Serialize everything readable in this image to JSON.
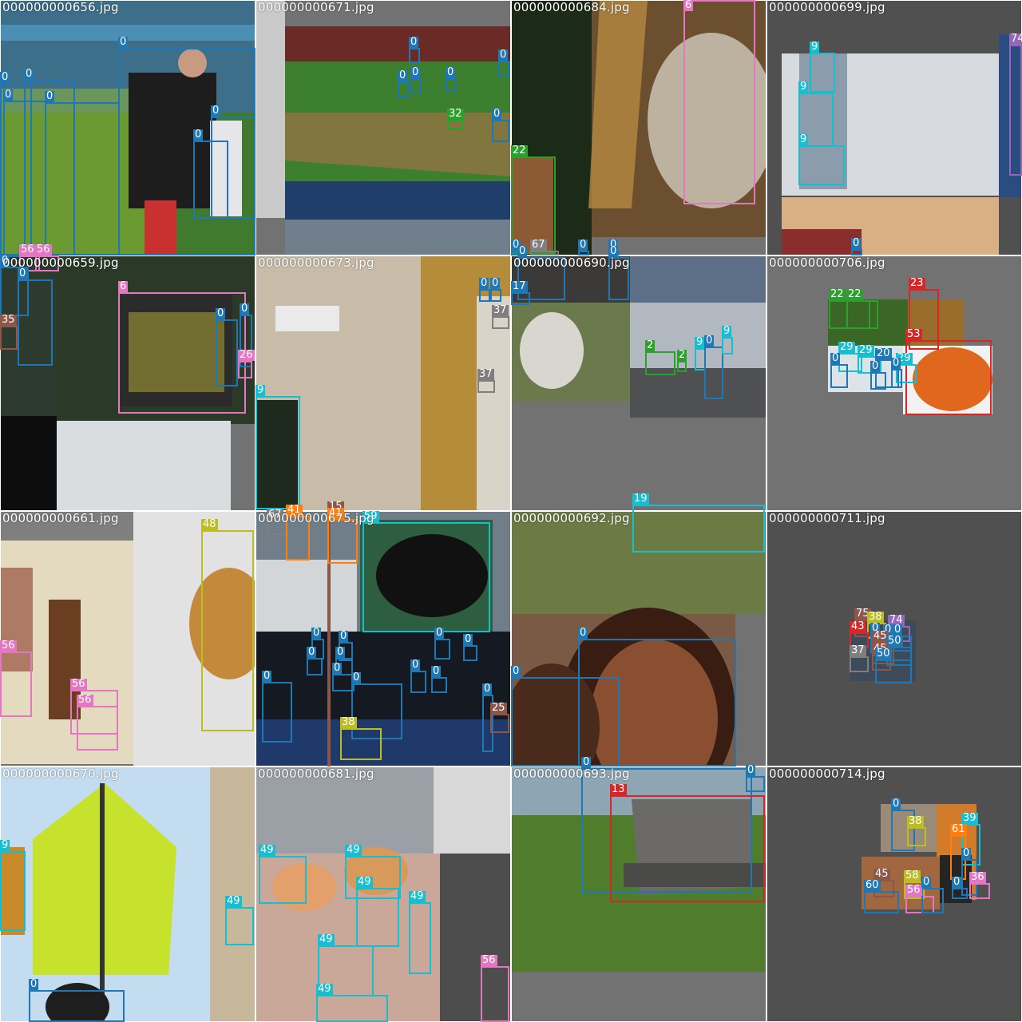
{
  "colors": {
    "0": "#1f77b4",
    "2": "#2ca02c",
    "6": "#e377c2",
    "9": "#17becf",
    "13": "#d62728",
    "15": "#8c564b",
    "19": "#17becf",
    "20": "#1f77b4",
    "22": "#2ca02c",
    "23": "#d62728",
    "25": "#8c564b",
    "26": "#e377c2",
    "29": "#17becf",
    "32": "#2ca02c",
    "35": "#8c564b",
    "36": "#e377c2",
    "37": "#7f7f7f",
    "38": "#bcbd22",
    "39": "#17becf",
    "41": "#ff7f0e",
    "43": "#d62728",
    "45": "#8c564b",
    "48": "#bcbd22",
    "49": "#17becf",
    "50": "#1f77b4",
    "53": "#d62728",
    "56": "#e377c2",
    "58": "#bcbd22",
    "59": "#17becf",
    "60": "#1f77b4",
    "61": "#ff7f0e",
    "67": "#7f7f7f",
    "74": "#9467bd",
    "75": "#8c564b"
  },
  "tiles": [
    {
      "file": "000000000656.jpg",
      "boxes": [
        [
          "0",
          148,
          60,
          172,
          260
        ],
        [
          "0",
          0,
          104,
          40,
          216
        ],
        [
          "0",
          4,
          126,
          54,
          196
        ],
        [
          "0",
          30,
          100,
          64,
          220
        ],
        [
          "0",
          56,
          128,
          94,
          192
        ],
        [
          "0",
          242,
          176,
          44,
          98
        ],
        [
          "0",
          264,
          146,
          56,
          128
        ],
        [
          "56",
          24,
          320,
          26,
          20
        ],
        [
          "56",
          44,
          320,
          30,
          20
        ]
      ]
    },
    {
      "file": "000000000671.jpg",
      "boxes": [
        [
          "0",
          512,
          60,
          14,
          20
        ],
        [
          "0",
          624,
          76,
          14,
          20
        ],
        [
          "0",
          498,
          102,
          14,
          20
        ],
        [
          "0",
          514,
          98,
          14,
          18
        ],
        [
          "0",
          558,
          98,
          14,
          16
        ],
        [
          "32",
          560,
          150,
          20,
          12
        ],
        [
          "0",
          616,
          150,
          22,
          28
        ]
      ]
    },
    {
      "file": "000000000684.jpg",
      "boxes": [
        [
          "6",
          856,
          0,
          90,
          256
        ],
        [
          "22",
          640,
          196,
          56,
          122
        ],
        [
          "0",
          640,
          314,
          10,
          6
        ],
        [
          "67",
          664,
          314,
          36,
          6
        ],
        [
          "0",
          724,
          314,
          14,
          6
        ],
        [
          "0",
          762,
          314,
          14,
          6
        ]
      ]
    },
    {
      "file": "000000000699.jpg",
      "boxes": [
        [
          "9",
          1014,
          66,
          32,
          50
        ],
        [
          "9",
          1000,
          116,
          44,
          68
        ],
        [
          "9",
          1000,
          182,
          58,
          50
        ],
        [
          "74",
          1264,
          56,
          16,
          164
        ],
        [
          "0",
          1066,
          312,
          14,
          8
        ]
      ]
    },
    {
      "file": "000000000659.jpg",
      "boxes": [
        [
          "6",
          148,
          366,
          160,
          152
        ],
        [
          "0",
          270,
          400,
          28,
          84
        ],
        [
          "0",
          300,
          394,
          16,
          66
        ],
        [
          "26",
          298,
          452,
          18,
          22
        ],
        [
          "0",
          0,
          334,
          36,
          62
        ],
        [
          "0",
          22,
          350,
          44,
          108
        ],
        [
          "35",
          0,
          408,
          22,
          30
        ]
      ]
    },
    {
      "file": "000000000673.jpg",
      "boxes": [
        [
          "9",
          320,
          496,
          56,
          142
        ],
        [
          "0",
          600,
          362,
          14,
          16
        ],
        [
          "0",
          614,
          362,
          14,
          16
        ],
        [
          "37",
          616,
          396,
          22,
          16
        ],
        [
          "37",
          598,
          476,
          22,
          16
        ]
      ]
    },
    {
      "file": "000000000690.jpg",
      "boxes": [
        [
          "0",
          648,
          322,
          60,
          54
        ],
        [
          "0",
          762,
          322,
          26,
          54
        ],
        [
          "17",
          640,
          366,
          24,
          16
        ],
        [
          "2",
          808,
          440,
          38,
          30
        ],
        [
          "2",
          848,
          452,
          12,
          14
        ],
        [
          "9",
          870,
          436,
          14,
          28
        ],
        [
          "0",
          882,
          434,
          24,
          66
        ],
        [
          "9",
          904,
          422,
          14,
          22
        ]
      ]
    },
    {
      "file": "000000000706.jpg",
      "boxes": [
        [
          "22",
          1038,
          376,
          52,
          36
        ],
        [
          "22",
          1060,
          376,
          40,
          36
        ],
        [
          "23",
          1138,
          362,
          38,
          76
        ],
        [
          "53",
          1134,
          426,
          108,
          94
        ],
        [
          "29",
          1050,
          442,
          30,
          24
        ],
        [
          "0",
          1040,
          456,
          22,
          30
        ],
        [
          "29",
          1074,
          446,
          30,
          22
        ],
        [
          "20",
          1096,
          450,
          30,
          36
        ],
        [
          "29",
          1122,
          456,
          26,
          24
        ],
        [
          "0",
          1090,
          466,
          20,
          22
        ],
        [
          "0",
          1116,
          462,
          14,
          24
        ]
      ]
    },
    {
      "file": "000000000661.jpg",
      "boxes": [
        [
          "48",
          252,
          664,
          66,
          252
        ],
        [
          "56",
          0,
          816,
          40,
          82
        ],
        [
          "56",
          88,
          864,
          60,
          56
        ],
        [
          "56",
          96,
          884,
          52,
          56
        ]
      ]
    },
    {
      "file": "000000000675.jpg",
      "boxes": [
        [
          "67",
          334,
          652,
          26,
          18
        ],
        [
          "41",
          358,
          646,
          30,
          56
        ],
        [
          "15",
          410,
          642,
          2,
          318
        ],
        [
          "41",
          410,
          650,
          38,
          56
        ],
        [
          "59",
          454,
          654,
          160,
          138
        ],
        [
          "0",
          390,
          800,
          16,
          26
        ],
        [
          "0",
          424,
          804,
          18,
          24
        ],
        [
          "0",
          544,
          800,
          20,
          26
        ],
        [
          "0",
          580,
          808,
          18,
          20
        ],
        [
          "0",
          384,
          824,
          20,
          22
        ],
        [
          "0",
          420,
          824,
          22,
          22
        ],
        [
          "0",
          416,
          844,
          28,
          22
        ],
        [
          "0",
          440,
          856,
          64,
          70
        ],
        [
          "0",
          328,
          854,
          38,
          76
        ],
        [
          "0",
          514,
          840,
          20,
          28
        ],
        [
          "0",
          540,
          848,
          20,
          20
        ],
        [
          "38",
          426,
          912,
          52,
          40
        ],
        [
          "0",
          604,
          870,
          14,
          72
        ],
        [
          "25",
          614,
          894,
          24,
          24
        ]
      ]
    },
    {
      "file": "000000000692.jpg",
      "boxes": [
        [
          "19",
          792,
          632,
          166,
          60
        ],
        [
          "0",
          724,
          800,
          198,
          160
        ],
        [
          "0",
          640,
          848,
          136,
          112
        ]
      ]
    },
    {
      "file": "000000000711.jpg",
      "boxes": [
        [
          "75",
          1070,
          776,
          30,
          22
        ],
        [
          "38",
          1086,
          780,
          24,
          20
        ],
        [
          "74",
          1112,
          784,
          28,
          20
        ],
        [
          "43",
          1064,
          792,
          24,
          20
        ],
        [
          "0",
          1090,
          794,
          18,
          24
        ],
        [
          "0",
          1106,
          796,
          14,
          20
        ],
        [
          "0",
          1118,
          796,
          24,
          20
        ],
        [
          "45",
          1092,
          804,
          28,
          28
        ],
        [
          "50",
          1110,
          810,
          32,
          24
        ],
        [
          "37",
          1064,
          822,
          24,
          20
        ],
        [
          "45",
          1092,
          820,
          24,
          20
        ],
        [
          "50",
          1096,
          826,
          46,
          30
        ]
      ]
    },
    {
      "file": "000000000670.jpg",
      "boxes": [
        [
          "9",
          0,
          1066,
          32,
          100
        ],
        [
          "0",
          36,
          1240,
          120,
          40
        ],
        [
          "49",
          282,
          1136,
          36,
          48
        ]
      ]
    },
    {
      "file": "000000000681.jpg",
      "boxes": [
        [
          "49",
          324,
          1072,
          60,
          60
        ],
        [
          "49",
          432,
          1072,
          70,
          54
        ],
        [
          "49",
          446,
          1112,
          54,
          74
        ],
        [
          "49",
          512,
          1130,
          28,
          90
        ],
        [
          "49",
          398,
          1184,
          70,
          64
        ],
        [
          "49",
          396,
          1246,
          90,
          34
        ],
        [
          "56",
          602,
          1210,
          36,
          70
        ]
      ]
    },
    {
      "file": "000000000693.jpg",
      "boxes": [
        [
          "0",
          728,
          962,
          214,
          156
        ],
        [
          "13",
          764,
          996,
          194,
          134
        ],
        [
          "0",
          934,
          972,
          24,
          20
        ]
      ]
    },
    {
      "file": "000000000714.jpg",
      "boxes": [
        [
          "0",
          1116,
          1014,
          30,
          52
        ],
        [
          "38",
          1136,
          1036,
          24,
          24
        ],
        [
          "39",
          1204,
          1032,
          24,
          52
        ],
        [
          "61",
          1190,
          1046,
          20,
          56
        ],
        [
          "0",
          1204,
          1076,
          20,
          46
        ],
        [
          "45",
          1094,
          1102,
          26,
          22
        ],
        [
          "58",
          1132,
          1104,
          26,
          22
        ],
        [
          "36",
          1214,
          1106,
          26,
          20
        ],
        [
          "60",
          1082,
          1116,
          44,
          28
        ],
        [
          "56",
          1134,
          1122,
          36,
          22
        ],
        [
          "0",
          1192,
          1112,
          20,
          14
        ],
        [
          "0",
          1154,
          1112,
          28,
          32
        ]
      ]
    }
  ]
}
